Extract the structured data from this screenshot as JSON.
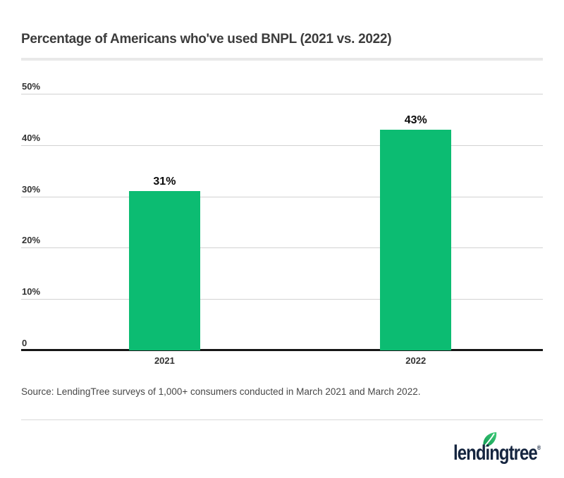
{
  "title": "Percentage of Americans who've used BNPL (2021 vs. 2022)",
  "source_note": "Source: LendingTree surveys of 1,000+ consumers conducted in March 2021 and March 2022.",
  "logo": {
    "text": "lendingtree",
    "registered_mark": "®",
    "leaf_icon": "leaf-icon",
    "text_color": "#15253f",
    "leaf_color": "#2bbf67"
  },
  "colors": {
    "bar_green": "#0cbc72",
    "grid_line": "#d2d2d2",
    "axis_line": "#161616",
    "title_divider": "#e9e9e9",
    "footer_divider": "#d9d9d9",
    "title_text": "#3c3c3c",
    "tick_text": "#333333",
    "value_text": "#0b0b0b",
    "source_text": "#474747"
  },
  "chart_data": {
    "type": "bar",
    "title": "Percentage of Americans who've used BNPL (2021 vs. 2022)",
    "categories": [
      "2021",
      "2022"
    ],
    "values": [
      31,
      43
    ],
    "value_labels": [
      "31%",
      "43%"
    ],
    "xlabel": "",
    "ylabel": "",
    "ylim": [
      0,
      50
    ],
    "yticks": [
      {
        "value": 0,
        "label": "0"
      },
      {
        "value": 10,
        "label": "10%"
      },
      {
        "value": 20,
        "label": "20%"
      },
      {
        "value": 30,
        "label": "30%"
      },
      {
        "value": 40,
        "label": "40%"
      },
      {
        "value": 50,
        "label": "50%"
      }
    ],
    "grid": true,
    "legend": "none",
    "bar_color": "#0cbc72"
  }
}
